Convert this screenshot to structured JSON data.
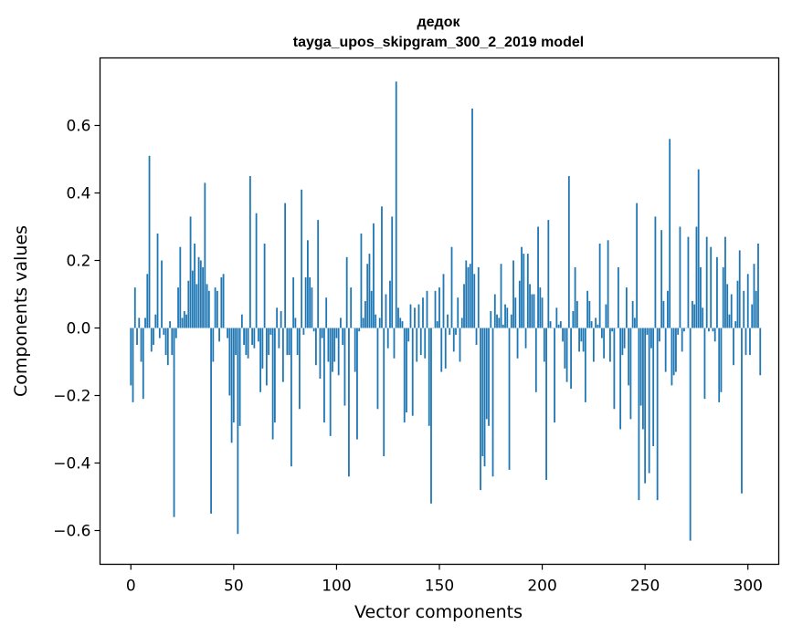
{
  "chart_data": {
    "type": "bar",
    "title_line1": "дедок",
    "title_line2": "tayga_upos_skipgram_300_2_2019 model",
    "xlabel": "Vector components",
    "ylabel": "Components values",
    "xlim": [
      -15,
      315
    ],
    "ylim": [
      -0.7,
      0.8
    ],
    "xticks": [
      0,
      50,
      100,
      150,
      200,
      250,
      300
    ],
    "yticks": [
      -0.6,
      -0.4,
      -0.2,
      0.0,
      0.2,
      0.4,
      0.6
    ],
    "xtick_labels": [
      "0",
      "50",
      "100",
      "150",
      "200",
      "250",
      "300"
    ],
    "ytick_labels": [
      "−0.6",
      "−0.4",
      "−0.2",
      "0.0",
      "0.2",
      "0.4",
      "0.6"
    ],
    "bar_color": "#1f77b4",
    "values": [
      -0.17,
      -0.22,
      0.12,
      -0.05,
      0.03,
      -0.1,
      -0.21,
      0.03,
      0.16,
      0.51,
      -0.07,
      -0.05,
      0.04,
      0.28,
      -0.03,
      0.2,
      -0.02,
      -0.08,
      -0.11,
      0.02,
      -0.08,
      -0.56,
      -0.03,
      0.12,
      0.24,
      0.03,
      0.05,
      0.04,
      0.14,
      0.33,
      0.17,
      0.25,
      0.13,
      0.21,
      0.2,
      0.18,
      0.43,
      0.13,
      0.11,
      -0.55,
      -0.1,
      0.12,
      0.11,
      -0.04,
      0.15,
      0.16,
      0.0,
      -0.03,
      -0.2,
      -0.34,
      -0.28,
      -0.08,
      -0.61,
      -0.29,
      0.04,
      -0.05,
      -0.08,
      -0.09,
      0.45,
      -0.05,
      -0.06,
      0.34,
      -0.04,
      -0.19,
      -0.12,
      0.25,
      -0.17,
      -0.08,
      -0.02,
      -0.33,
      -0.28,
      0.06,
      -0.06,
      0.05,
      -0.16,
      0.37,
      -0.08,
      -0.08,
      -0.41,
      0.15,
      0.03,
      -0.08,
      -0.24,
      0.41,
      -0.02,
      0.15,
      0.26,
      0.15,
      0.12,
      -0.01,
      -0.11,
      0.32,
      -0.15,
      -0.03,
      -0.28,
      0.09,
      -0.1,
      -0.32,
      -0.13,
      -0.1,
      -0.03,
      -0.14,
      0.03,
      -0.05,
      -0.23,
      0.21,
      -0.44,
      0.12,
      0.0,
      -0.13,
      -0.33,
      -0.01,
      0.28,
      0.03,
      0.08,
      0.19,
      0.22,
      0.11,
      0.31,
      0.04,
      -0.24,
      0.03,
      0.36,
      -0.38,
      0.1,
      -0.06,
      0.14,
      0.33,
      -0.09,
      0.73,
      0.06,
      0.03,
      0.02,
      -0.28,
      -0.25,
      -0.04,
      0.07,
      -0.26,
      0.06,
      -0.1,
      0.07,
      -0.08,
      0.09,
      -0.09,
      0.11,
      -0.29,
      -0.52,
      0.0,
      0.11,
      0.02,
      0.12,
      -0.13,
      0.16,
      -0.12,
      0.04,
      -0.02,
      0.24,
      -0.07,
      -0.02,
      0.09,
      -0.1,
      0.03,
      0.13,
      0.2,
      0.18,
      0.19,
      0.65,
      0.16,
      -0.05,
      0.18,
      -0.48,
      -0.38,
      -0.41,
      -0.27,
      -0.29,
      0.05,
      -0.44,
      0.1,
      0.04,
      0.03,
      0.19,
      0.01,
      0.07,
      0.06,
      -0.42,
      0.04,
      0.2,
      0.09,
      -0.09,
      0.14,
      0.24,
      0.22,
      -0.06,
      0.22,
      0.13,
      0.1,
      0.1,
      -0.19,
      0.3,
      0.12,
      0.09,
      -0.1,
      -0.45,
      0.32,
      0.02,
      0.0,
      -0.28,
      0.06,
      0.01,
      0.02,
      -0.04,
      -0.12,
      -0.16,
      0.45,
      -0.18,
      0.05,
      0.18,
      0.08,
      -0.07,
      -0.04,
      -0.07,
      -0.22,
      0.11,
      0.08,
      0.02,
      -0.1,
      0.03,
      0.01,
      0.25,
      -0.03,
      -0.09,
      0.07,
      0.26,
      -0.1,
      -0.01,
      -0.24,
      0.0,
      0.18,
      -0.3,
      -0.08,
      -0.06,
      0.12,
      -0.17,
      -0.27,
      0.08,
      0.03,
      0.37,
      -0.51,
      -0.23,
      -0.3,
      -0.46,
      -0.02,
      -0.43,
      -0.06,
      -0.35,
      0.33,
      -0.51,
      -0.04,
      0.29,
      0.08,
      -0.13,
      0.11,
      0.56,
      -0.17,
      -0.14,
      -0.13,
      -0.02,
      0.3,
      -0.07,
      -0.01,
      0.0,
      0.27,
      -0.63,
      0.08,
      0.07,
      0.3,
      0.47,
      0.18,
      0.06,
      -0.21,
      0.27,
      -0.01,
      0.24,
      -0.01,
      -0.04,
      0.21,
      -0.22,
      -0.19,
      0.18,
      0.27,
      0.13,
      0.04,
      0.1,
      -0.11,
      0.02,
      0.14,
      0.23,
      -0.49,
      0.11,
      -0.08,
      0.16,
      -0.08,
      0.07,
      0.19,
      0.11,
      0.25,
      -0.14
    ]
  }
}
